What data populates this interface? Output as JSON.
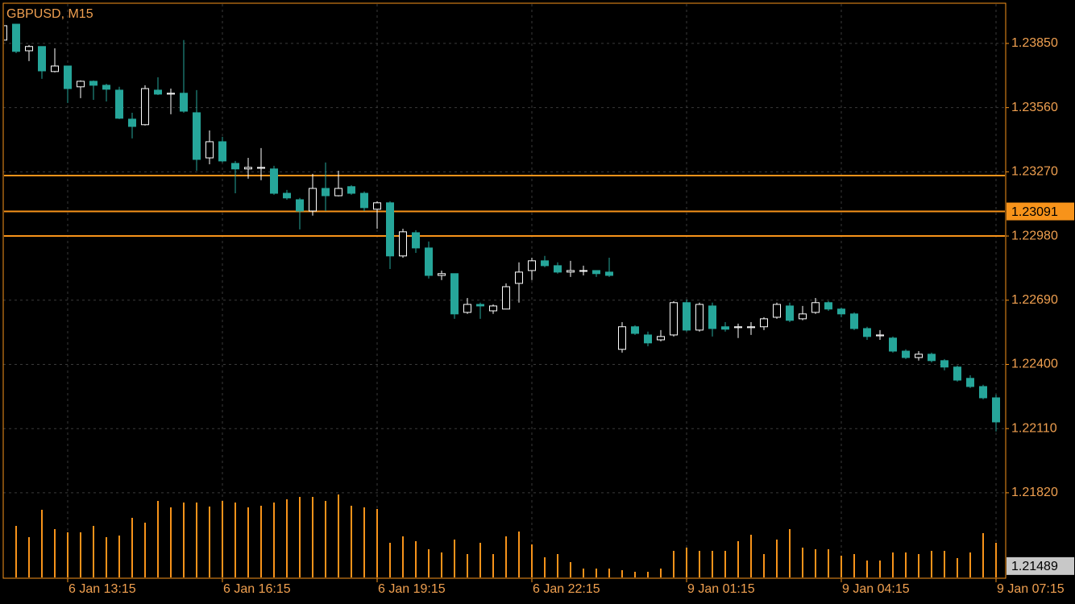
{
  "chart_data": {
    "type": "candlestick",
    "title": "GBPUSD, M15",
    "categories": [
      null,
      null,
      null,
      null,
      null,
      "6 Jan 13:15",
      null,
      null,
      null,
      null,
      null,
      null,
      null,
      null,
      null,
      null,
      null,
      "6 Jan 16:15",
      null,
      null,
      null,
      null,
      null,
      null,
      null,
      null,
      null,
      null,
      null,
      "6 Jan 19:15",
      null,
      null,
      null,
      null,
      null,
      null,
      null,
      null,
      null,
      null,
      null,
      "6 Jan 22:15",
      null,
      null,
      null,
      null,
      null,
      null,
      null,
      null,
      null,
      null,
      null,
      "9 Jan 01:15",
      null,
      null,
      null,
      null,
      null,
      null,
      null,
      null,
      null,
      null,
      null,
      "9 Jan 04:15",
      null,
      null,
      null,
      null,
      null,
      null,
      null,
      null,
      null,
      null,
      null,
      "9 Jan 07:15"
    ],
    "open": [
      1.23865,
      1.23937,
      1.23817,
      1.23836,
      1.23723,
      1.23748,
      1.23654,
      1.23679,
      1.23661,
      1.23639,
      1.23508,
      1.23483,
      1.23639,
      1.23621,
      1.23625,
      1.23537,
      1.23333,
      1.23406,
      1.23308,
      1.23283,
      1.23286,
      1.23283,
      1.23173,
      1.23144,
      1.23093,
      1.23195,
      1.23162,
      1.23203,
      1.23173,
      1.23101,
      1.2313,
      1.2289,
      1.22995,
      1.22926,
      1.22802,
      1.2281,
      1.22635,
      1.22671,
      1.22642,
      1.2265,
      1.22766,
      1.22824,
      1.22868,
      1.22846,
      1.22817,
      1.22821,
      1.22824,
      1.22817,
      1.22468,
      1.2257,
      1.22533,
      1.22511,
      1.22533,
      1.22679,
      1.22555,
      1.22664,
      1.2257,
      1.22566,
      1.22566,
      1.2257,
      1.22613,
      1.22664,
      1.22606,
      1.22635,
      1.22679,
      1.2265,
      1.22628,
      1.22562,
      1.22529,
      1.22519,
      1.2246,
      1.22431,
      1.22446,
      1.22417,
      1.22388,
      1.22337,
      1.223,
      1.22249
    ],
    "high": [
      1.23937,
      1.23937,
      1.23843,
      1.23836,
      1.23828,
      1.23748,
      1.23683,
      1.23683,
      1.23668,
      1.23654,
      1.23537,
      1.23661,
      1.23697,
      1.23646,
      1.23865,
      1.23639,
      1.23457,
      1.23428,
      1.23319,
      1.23333,
      1.23377,
      1.23297,
      1.23188,
      1.23152,
      1.23261,
      1.23312,
      1.23275,
      1.2321,
      1.23181,
      1.23137,
      1.23137,
      1.23013,
      1.23006,
      1.22955,
      1.22824,
      1.2281,
      1.227,
      1.22679,
      1.22671,
      1.22766,
      1.22861,
      1.22882,
      1.2289,
      1.22861,
      1.22868,
      1.22846,
      1.22824,
      1.22882,
      1.22591,
      1.22577,
      1.22548,
      1.22555,
      1.22686,
      1.22693,
      1.22679,
      1.22679,
      1.22591,
      1.22584,
      1.22591,
      1.22613,
      1.22679,
      1.22679,
      1.22664,
      1.227,
      1.22686,
      1.22657,
      1.22635,
      1.2257,
      1.22555,
      1.22526,
      1.22468,
      1.2246,
      1.22453,
      1.22424,
      1.22395,
      1.22351,
      1.22308,
      1.22264
    ],
    "low": [
      1.23865,
      1.23806,
      1.2377,
      1.2369,
      1.23719,
      1.23581,
      1.23603,
      1.23595,
      1.23588,
      1.23508,
      1.23421,
      1.23479,
      1.23617,
      1.2353,
      1.23537,
      1.23275,
      1.23304,
      1.23312,
      1.23173,
      1.23239,
      1.23232,
      1.23166,
      1.23144,
      1.2301,
      1.23072,
      1.23093,
      1.23159,
      1.23166,
      1.23093,
      1.23013,
      1.22831,
      1.22882,
      1.22904,
      1.22788,
      1.22781,
      1.22606,
      1.22628,
      1.22606,
      1.22628,
      1.2265,
      1.22679,
      1.22781,
      1.22839,
      1.2281,
      1.22795,
      1.22802,
      1.22795,
      1.22795,
      1.22453,
      1.22533,
      1.22482,
      1.22504,
      1.22526,
      1.22548,
      1.22548,
      1.22526,
      1.22548,
      1.22519,
      1.22533,
      1.22555,
      1.22606,
      1.22591,
      1.22599,
      1.22628,
      1.22642,
      1.22613,
      1.22555,
      1.22511,
      1.22511,
      1.22453,
      1.22424,
      1.22417,
      1.22409,
      1.22373,
      1.22322,
      1.22293,
      1.22242,
      1.22097
    ],
    "close": [
      1.2393,
      1.23814,
      1.23836,
      1.23726,
      1.23748,
      1.23646,
      1.23679,
      1.23661,
      1.23643,
      1.23512,
      1.23475,
      1.23646,
      1.23621,
      1.23625,
      1.23544,
      1.23326,
      1.23406,
      1.23319,
      1.23283,
      1.2329,
      1.2329,
      1.23173,
      1.23152,
      1.23093,
      1.23195,
      1.23162,
      1.23195,
      1.23173,
      1.23108,
      1.2313,
      1.2289,
      1.22999,
      1.22926,
      1.22802,
      1.2281,
      1.22628,
      1.22671,
      1.22664,
      1.22664,
      1.22751,
      1.22817,
      1.22868,
      1.22846,
      1.22817,
      1.22824,
      1.22824,
      1.2281,
      1.22802,
      1.2257,
      1.2254,
      1.22497,
      1.22526,
      1.22679,
      1.22555,
      1.22671,
      1.22562,
      1.22559,
      1.2257,
      1.2257,
      1.22606,
      1.22671,
      1.22599,
      1.22628,
      1.22679,
      1.2265,
      1.22628,
      1.22562,
      1.22526,
      1.22533,
      1.2246,
      1.22431,
      1.22446,
      1.22417,
      1.22388,
      1.22329,
      1.223,
      1.22249,
      1.2214
    ],
    "volume": [
      null,
      65,
      51,
      85,
      61,
      57,
      57,
      65,
      51,
      53,
      75,
      69,
      96,
      88,
      94,
      94,
      89,
      96,
      94,
      88,
      90,
      94,
      98,
      101,
      101,
      96,
      104,
      90,
      88,
      86,
      44,
      52,
      46,
      36,
      32,
      48,
      30,
      44,
      30,
      52,
      58,
      42,
      26,
      30,
      20,
      12,
      12,
      12,
      10,
      8,
      8,
      12,
      34,
      38,
      34,
      34,
      34,
      46,
      54,
      30,
      48,
      61,
      38,
      36,
      36,
      28,
      30,
      22,
      22,
      32,
      32,
      30,
      34,
      34,
      25,
      32,
      56,
      44
    ],
    "ylim": [
      1.21434,
      1.24028
    ],
    "yticks": [
      {
        "value": 1.2385,
        "label": "1.23850"
      },
      {
        "value": 1.2356,
        "label": "1.23560"
      },
      {
        "value": 1.2327,
        "label": "1.23270"
      },
      {
        "value": 1.2298,
        "label": "1.22980"
      },
      {
        "value": 1.2269,
        "label": "1.22690"
      },
      {
        "value": 1.224,
        "label": "1.22400"
      },
      {
        "value": 1.2211,
        "label": "1.22110"
      },
      {
        "value": 1.2182,
        "label": "1.21820"
      }
    ],
    "grid": true,
    "hlines": [
      1.23253,
      1.23091,
      1.2298
    ],
    "price_tags": [
      {
        "value": 1.23091,
        "color": "#f7931a"
      },
      {
        "value": 1.21489,
        "color": "#c8c8c8"
      }
    ],
    "colors": {
      "up": "#ffffff",
      "down": "#26a69a",
      "volume": "#f7931a",
      "frame": "#f7931a",
      "text": "#f0a050"
    }
  }
}
